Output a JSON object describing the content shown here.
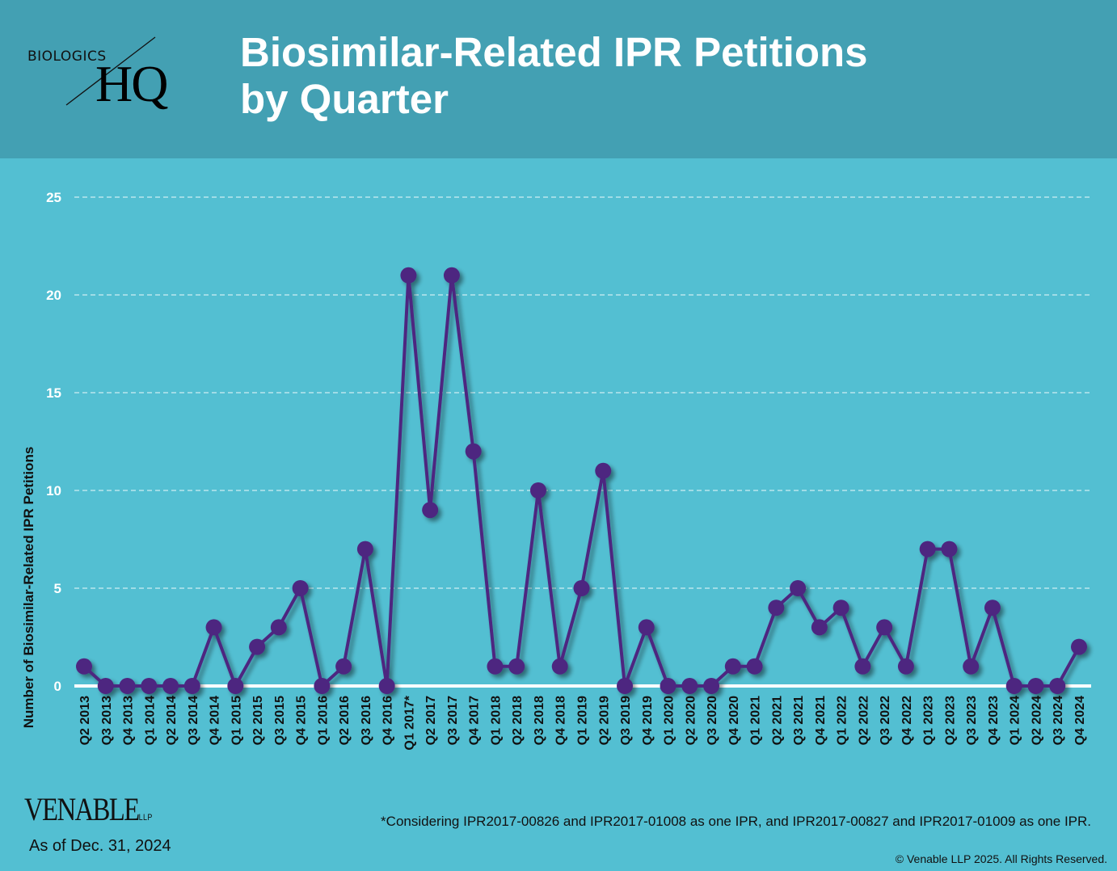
{
  "header": {
    "logo_top": "BIOLOGICS",
    "logo_main": "HQ",
    "title_line1": "Biosimilar-Related IPR Petitions",
    "title_line2": "by Quarter"
  },
  "footer": {
    "firm_logo": "VENABLE",
    "firm_logo_suffix": "LLP",
    "as_of": "As of Dec. 31, 2024",
    "footnote": "*Considering IPR2017-00826 and IPR2017-01008 as one IPR, and IPR2017-00827 and IPR2017-01009 as one IPR.",
    "copyright": "© Venable LLP 2025. All Rights Reserved."
  },
  "colors": {
    "header_bg": "#43a0b3",
    "plot_bg": "#53bfd2",
    "series": "#4e2580",
    "grid": "#ffffff"
  },
  "chart_data": {
    "type": "line",
    "title": "Biosimilar-Related IPR Petitions by Quarter",
    "xlabel": "",
    "ylabel": "Number of Biosimilar-Related IPR Petitions",
    "ylim": [
      0,
      25
    ],
    "yticks": [
      0,
      5,
      10,
      15,
      20,
      25
    ],
    "grid": "horizontal dashed",
    "legend": "none",
    "categories": [
      "Q2 2013",
      "Q3 2013",
      "Q4 2013",
      "Q1 2014",
      "Q2 2014",
      "Q3 2014",
      "Q4 2014",
      "Q1 2015",
      "Q2 2015",
      "Q3 2015",
      "Q4 2015",
      "Q1 2016",
      "Q2 2016",
      "Q3 2016",
      "Q4 2016",
      "Q1 2017*",
      "Q2 2017",
      "Q3 2017",
      "Q4 2017",
      "Q1 2018",
      "Q2 2018",
      "Q3 2018",
      "Q4 2018",
      "Q1 2019",
      "Q2 2019",
      "Q3 2019",
      "Q4 2019",
      "Q1 2020",
      "Q2 2020",
      "Q3 2020",
      "Q4 2020",
      "Q1 2021",
      "Q2 2021",
      "Q3 2021",
      "Q4 2021",
      "Q1 2022",
      "Q2 2022",
      "Q3 2022",
      "Q4 2022",
      "Q1 2023",
      "Q2 2023",
      "Q3 2023",
      "Q4 2023",
      "Q1 2024",
      "Q2 2024",
      "Q3 2024",
      "Q4 2024"
    ],
    "series": [
      {
        "name": "IPR Petitions",
        "values": [
          1,
          0,
          0,
          0,
          0,
          0,
          3,
          0,
          2,
          3,
          5,
          0,
          1,
          7,
          0,
          21,
          9,
          21,
          12,
          1,
          1,
          10,
          1,
          5,
          11,
          0,
          3,
          0,
          0,
          0,
          1,
          1,
          4,
          5,
          3,
          4,
          1,
          3,
          1,
          7,
          7,
          1,
          4,
          0,
          0,
          0,
          2
        ]
      }
    ]
  }
}
